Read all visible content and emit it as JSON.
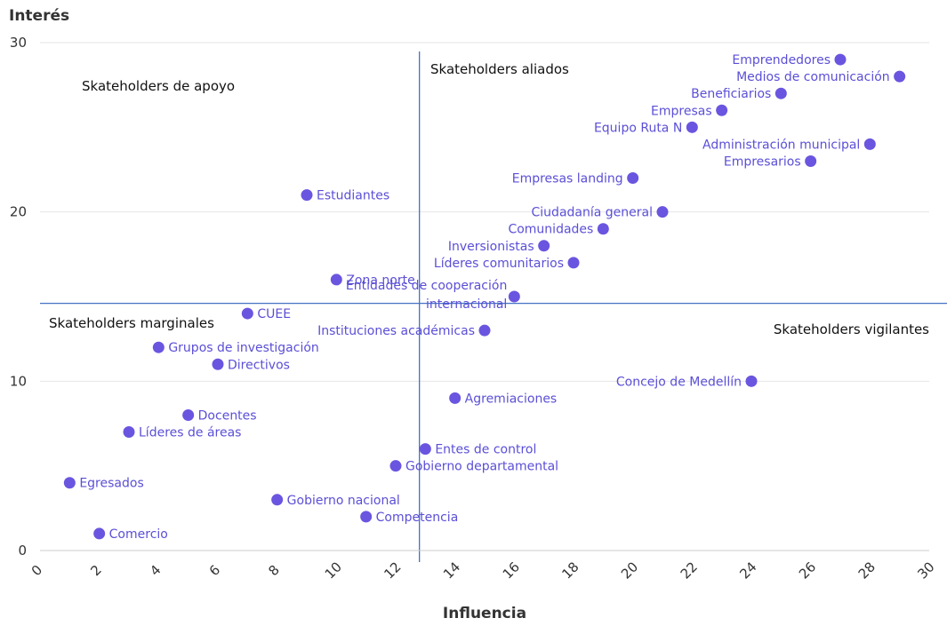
{
  "chart_data": {
    "type": "scatter",
    "xlabel": "Influencia",
    "ylabel": "Interés",
    "xlim": [
      0,
      30
    ],
    "ylim": [
      0,
      30
    ],
    "x_ticks": [
      "0",
      "2",
      "4",
      "6",
      "8",
      "10",
      "12",
      "14",
      "16",
      "18",
      "20",
      "22",
      "24",
      "26",
      "28",
      "30"
    ],
    "y_ticks": [
      "0",
      "10",
      "20",
      "30"
    ],
    "grid": "horizontal",
    "point_color": "#6a55e0",
    "divider_color": "#4472c4",
    "dividers": {
      "x": 12.8,
      "y": 14.6
    },
    "quadrant_labels": [
      "Skateholders de apoyo",
      "Skateholders aliados",
      "Skateholders marginales",
      "Skateholders vigilantes"
    ],
    "points": [
      {
        "label": "Emprendedores",
        "x": 27,
        "y": 29
      },
      {
        "label": "Medios de comunicación",
        "x": 29,
        "y": 28
      },
      {
        "label": "Beneficiarios",
        "x": 25,
        "y": 27
      },
      {
        "label": "Empresas",
        "x": 23,
        "y": 26
      },
      {
        "label": "Equipo Ruta N",
        "x": 22,
        "y": 25
      },
      {
        "label": "Administración municipal",
        "x": 28,
        "y": 24
      },
      {
        "label": "Empresarios",
        "x": 26,
        "y": 23
      },
      {
        "label": "Empresas landing",
        "x": 20,
        "y": 22
      },
      {
        "label": "Estudiantes",
        "x": 9,
        "y": 21
      },
      {
        "label": "Ciudadanía general",
        "x": 21,
        "y": 20
      },
      {
        "label": "Comunidades",
        "x": 19,
        "y": 19
      },
      {
        "label": "Inversionistas",
        "x": 17,
        "y": 18
      },
      {
        "label": "Líderes comunitarios",
        "x": 18,
        "y": 17
      },
      {
        "label": "Zona norte",
        "x": 10,
        "y": 16
      },
      {
        "label": "Entidades de cooperación internacional",
        "x": 16,
        "y": 15
      },
      {
        "label": "CUEE",
        "x": 7,
        "y": 14
      },
      {
        "label": "Instituciones académicas",
        "x": 15,
        "y": 13
      },
      {
        "label": "Grupos de investigación",
        "x": 4,
        "y": 12
      },
      {
        "label": "Directivos",
        "x": 6,
        "y": 11
      },
      {
        "label": "Concejo de Medellín",
        "x": 24,
        "y": 10
      },
      {
        "label": "Agremiaciones",
        "x": 14,
        "y": 9
      },
      {
        "label": "Docentes",
        "x": 5,
        "y": 8
      },
      {
        "label": "Líderes de áreas",
        "x": 3,
        "y": 7
      },
      {
        "label": "Entes de control",
        "x": 13,
        "y": 6
      },
      {
        "label": "Gobierno departamental",
        "x": 12,
        "y": 5
      },
      {
        "label": "Egresados",
        "x": 1,
        "y": 4
      },
      {
        "label": "Gobierno nacional",
        "x": 8,
        "y": 3
      },
      {
        "label": "Competencia",
        "x": 11,
        "y": 2
      },
      {
        "label": "Comercio",
        "x": 2,
        "y": 1
      }
    ]
  }
}
